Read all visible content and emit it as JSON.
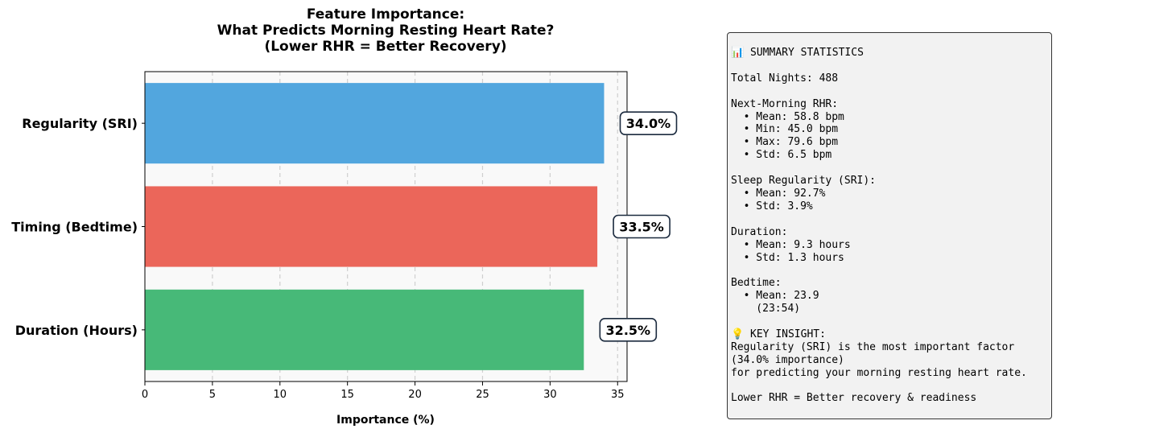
{
  "chart_data": {
    "type": "bar",
    "orientation": "horizontal",
    "title": [
      "Feature Importance:",
      "What Predicts Morning Resting Heart Rate?",
      "(Lower RHR = Better Recovery)"
    ],
    "categories": [
      "Regularity (SRI)",
      "Timing (Bedtime)",
      "Duration (Hours)"
    ],
    "values": [
      34.0,
      33.5,
      32.5
    ],
    "value_labels": [
      "34.0%",
      "33.5%",
      "32.5%"
    ],
    "colors": [
      "#52a6de",
      "#eb665a",
      "#47b978"
    ],
    "xlabel": "Importance (%)",
    "ylabel": "",
    "xlim": [
      0,
      35.7
    ],
    "xticks": [
      0,
      5,
      10,
      15,
      20,
      25,
      30,
      35
    ],
    "grid": "x dashed"
  },
  "summary": {
    "lines": [
      "📊 SUMMARY STATISTICS",
      "",
      "Total Nights: 488",
      "",
      "Next-Morning RHR:",
      "  • Mean: 58.8 bpm",
      "  • Min: 45.0 bpm",
      "  • Max: 79.6 bpm",
      "  • Std: 6.5 bpm",
      "",
      "Sleep Regularity (SRI):",
      "  • Mean: 92.7%",
      "  • Std: 3.9%",
      "",
      "Duration:",
      "  • Mean: 9.3 hours",
      "  • Std: 1.3 hours",
      "",
      "Bedtime:",
      "  • Mean: 23.9",
      "    (23:54)",
      "",
      "💡 KEY INSIGHT:",
      "Regularity (SRI) is the most important factor",
      "(34.0% importance)",
      "for predicting your morning resting heart rate.",
      "",
      "Lower RHR = Better recovery & readiness"
    ]
  }
}
